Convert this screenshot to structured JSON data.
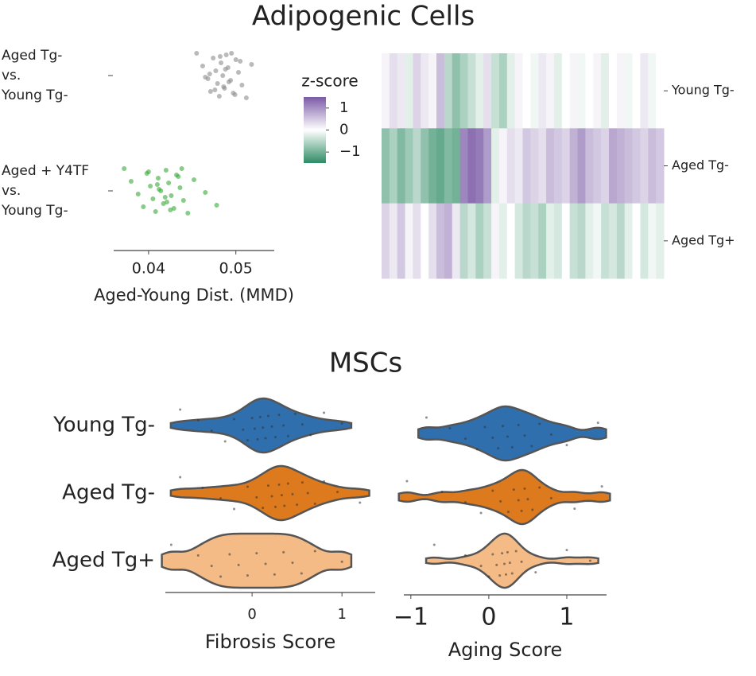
{
  "chart_data": [
    {
      "type": "strip",
      "title": "Adipogenic Cells",
      "xlabel": "Aged-Young Dist. (MMD)",
      "categories": [
        [
          "Aged Tg-",
          "vs.",
          "Young Tg-"
        ],
        [
          "Aged + Y4TF",
          "vs.",
          "Young Tg-"
        ]
      ],
      "xlim": [
        0.036,
        0.0544
      ],
      "xticks": [
        0.04,
        0.05
      ],
      "series": [
        {
          "color": "#8c8c8c",
          "values": [
            0.0455,
            0.0462,
            0.0468,
            0.0471,
            0.0474,
            0.0477,
            0.0479,
            0.0481,
            0.0483,
            0.0485,
            0.0487,
            0.0489,
            0.0491,
            0.0494,
            0.0497,
            0.05,
            0.0503,
            0.0507,
            0.0512,
            0.0518,
            0.0465,
            0.0476,
            0.0482,
            0.0488,
            0.0492,
            0.0499,
            0.0505,
            0.047,
            0.0486,
            0.0495
          ]
        },
        {
          "color": "#3aa83a",
          "values": [
            0.0372,
            0.038,
            0.0388,
            0.0394,
            0.0398,
            0.0402,
            0.0405,
            0.0408,
            0.0411,
            0.0414,
            0.0417,
            0.042,
            0.0423,
            0.0426,
            0.0429,
            0.0432,
            0.0436,
            0.044,
            0.0445,
            0.0452,
            0.0465,
            0.0478,
            0.04,
            0.041,
            0.0419,
            0.0425,
            0.0434,
            0.0412,
            0.0421,
            0.0438
          ]
        }
      ]
    },
    {
      "type": "heatmap",
      "colorbar_label": "z-score",
      "zlim": [
        -1.5,
        1.5
      ],
      "zticks": [
        1,
        0,
        {
          "value": -1,
          "label": "−1"
        }
      ],
      "cmap": [
        "#2e8b64",
        "#ffffff",
        "#7b5aa6"
      ],
      "rows": [
        "Young Tg-",
        "Aged Tg-",
        "Aged Tg+"
      ],
      "values": [
        [
          0.1,
          0.3,
          0.2,
          -0.2,
          0.4,
          0.2,
          0.1,
          0.6,
          -0.5,
          -0.8,
          -0.6,
          -0.4,
          -0.2,
          0.3,
          -0.4,
          -0.6,
          -0.2,
          0.1,
          0.0,
          -0.1,
          0.2,
          0.1,
          -0.2,
          0.0,
          0.1,
          -0.1,
          0.0,
          0.1,
          -0.2,
          0.0,
          0.1,
          -0.1,
          0.0,
          0.2,
          -0.1,
          0.0
        ],
        [
          -0.8,
          -0.6,
          -0.9,
          -0.7,
          -0.5,
          -0.8,
          -1.0,
          -1.1,
          -0.9,
          -1.0,
          1.1,
          1.3,
          1.2,
          0.9,
          -0.2,
          0.1,
          0.3,
          0.2,
          0.5,
          0.4,
          0.3,
          0.6,
          0.5,
          0.4,
          0.7,
          0.9,
          0.6,
          0.5,
          0.4,
          0.8,
          0.7,
          0.6,
          0.5,
          0.4,
          0.6,
          0.5
        ],
        [
          0.4,
          0.2,
          0.5,
          0.1,
          0.3,
          0.0,
          0.3,
          0.6,
          0.7,
          0.2,
          -0.5,
          -0.3,
          -0.6,
          -0.4,
          0.1,
          -0.2,
          0.0,
          -0.3,
          -0.5,
          -0.4,
          -0.6,
          -0.2,
          -0.3,
          0.0,
          -0.4,
          -0.5,
          -0.2,
          -0.1,
          -0.4,
          -0.3,
          -0.5,
          -0.2,
          0.0,
          -0.3,
          -0.1,
          -0.2
        ]
      ]
    },
    {
      "type": "violin",
      "title": "MSCs",
      "xlabel": "Fibrosis Score",
      "categories": [
        "Young Tg-",
        "Aged Tg-",
        "Aged Tg+"
      ],
      "colors": [
        "#2f6fae",
        "#dd7a1e",
        "#f4bb86"
      ],
      "xlim": [
        -0.965,
        1.37
      ],
      "xticks": [
        0,
        1
      ],
      "values": [
        [
          -0.8,
          -0.6,
          -0.45,
          -0.3,
          -0.2,
          -0.1,
          -0.05,
          0,
          0.03,
          0.06,
          0.09,
          0.12,
          0.15,
          0.18,
          0.22,
          0.26,
          0.3,
          0.35,
          0.4,
          0.48,
          0.56,
          0.65,
          0.8,
          1.0
        ],
        [
          -0.8,
          -0.55,
          -0.35,
          -0.2,
          -0.05,
          0.05,
          0.12,
          0.18,
          0.22,
          0.26,
          0.3,
          0.33,
          0.36,
          0.4,
          0.45,
          0.5,
          0.56,
          0.62,
          0.7,
          0.8,
          0.95,
          1.2
        ],
        [
          -0.9,
          -0.6,
          -0.45,
          -0.35,
          -0.25,
          -0.15,
          -0.05,
          0.05,
          0.15,
          0.25,
          0.35,
          0.45,
          0.55,
          0.7,
          1.0
        ]
      ]
    },
    {
      "type": "violin",
      "xlabel": "Aging Score",
      "colors": [
        "#2f6fae",
        "#dd7a1e",
        "#f4bb86"
      ],
      "xlim": [
        -1.09,
        1.51
      ],
      "xticks": [
        {
          "value": -1,
          "label": "−1"
        },
        0,
        1
      ],
      "values": [
        [
          -0.8,
          -0.5,
          -0.3,
          -0.15,
          -0.05,
          0.05,
          0.12,
          0.18,
          0.24,
          0.3,
          0.38,
          0.46,
          0.55,
          0.65,
          0.8,
          1.0,
          1.4
        ],
        [
          -1.05,
          -0.6,
          -0.3,
          -0.1,
          0.05,
          0.15,
          0.25,
          0.32,
          0.38,
          0.42,
          0.46,
          0.5,
          0.56,
          0.65,
          0.8,
          1.1,
          1.45
        ],
        [
          -0.7,
          -0.3,
          -0.1,
          0.0,
          0.05,
          0.1,
          0.14,
          0.17,
          0.2,
          0.22,
          0.24,
          0.27,
          0.3,
          0.35,
          0.42,
          0.6,
          1.0,
          1.3
        ]
      ]
    }
  ]
}
